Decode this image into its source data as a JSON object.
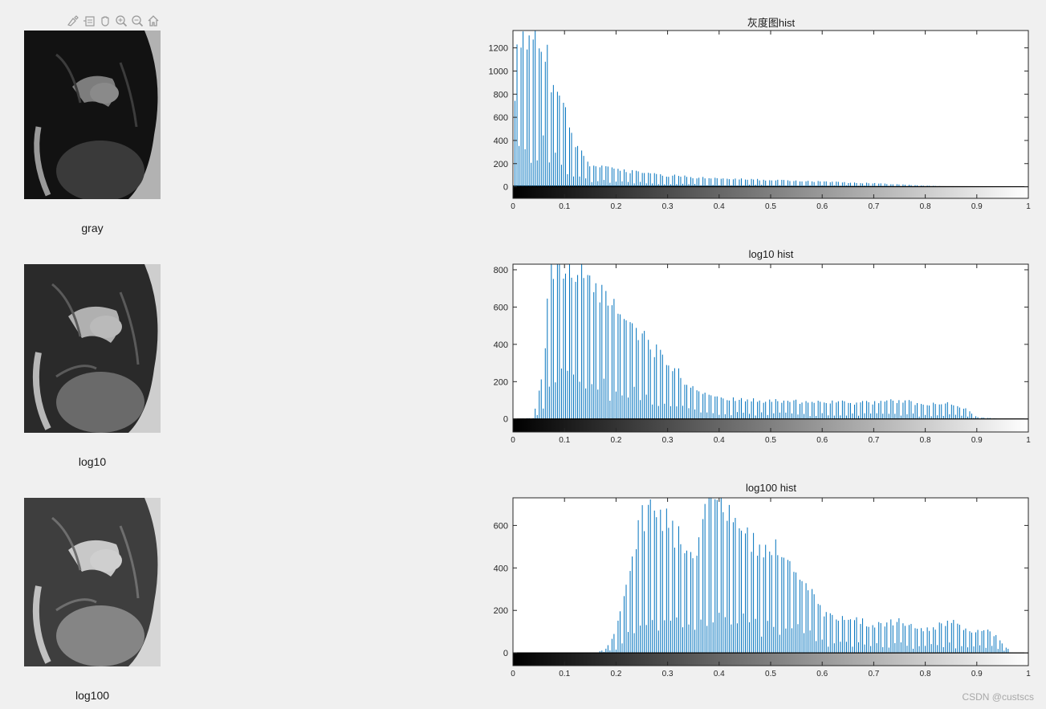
{
  "toolbar": {
    "icons": [
      "brush-icon",
      "datatip-icon",
      "pan-hand-icon",
      "zoom-in-icon",
      "zoom-out-icon",
      "home-icon"
    ]
  },
  "images": [
    {
      "label": "gray"
    },
    {
      "label": "log10"
    },
    {
      "label": "log100"
    }
  ],
  "watermark": "CSDN @custscs",
  "chart_data": [
    {
      "type": "bar",
      "title": "灰度图hist",
      "xlim": [
        0,
        1
      ],
      "ylim": [
        -100,
        1350
      ],
      "xticks": [
        "0",
        "0.1",
        "0.2",
        "0.3",
        "0.4",
        "0.5",
        "0.6",
        "0.7",
        "0.8",
        "0.9",
        "1"
      ],
      "yticks": [
        "0",
        "200",
        "400",
        "600",
        "800",
        "1000",
        "1200"
      ],
      "colorbar": "grayscale 0 to 1",
      "series_color": "#0072bd",
      "profile": [
        [
          0,
          500
        ],
        [
          0.01,
          1350
        ],
        [
          0.02,
          1350
        ],
        [
          0.04,
          1350
        ],
        [
          0.06,
          1350
        ],
        [
          0.07,
          1000
        ],
        [
          0.08,
          900
        ],
        [
          0.1,
          700
        ],
        [
          0.12,
          400
        ],
        [
          0.15,
          200
        ],
        [
          0.2,
          150
        ],
        [
          0.3,
          100
        ],
        [
          0.4,
          70
        ],
        [
          0.5,
          60
        ],
        [
          0.6,
          45
        ],
        [
          0.7,
          30
        ],
        [
          0.8,
          10
        ],
        [
          0.85,
          0
        ]
      ]
    },
    {
      "type": "bar",
      "title": "log10 hist",
      "xlim": [
        0,
        1
      ],
      "ylim": [
        -70,
        830
      ],
      "xticks": [
        "0",
        "0.1",
        "0.2",
        "0.3",
        "0.4",
        "0.5",
        "0.6",
        "0.7",
        "0.8",
        "0.9",
        "1"
      ],
      "yticks": [
        "0",
        "200",
        "400",
        "600",
        "800"
      ],
      "colorbar": "grayscale 0 to 1",
      "series_color": "#0072bd",
      "profile": [
        [
          0,
          0
        ],
        [
          0.04,
          5
        ],
        [
          0.05,
          150
        ],
        [
          0.06,
          300
        ],
        [
          0.07,
          780
        ],
        [
          0.08,
          830
        ],
        [
          0.1,
          830
        ],
        [
          0.15,
          780
        ],
        [
          0.2,
          600
        ],
        [
          0.25,
          450
        ],
        [
          0.3,
          320
        ],
        [
          0.35,
          160
        ],
        [
          0.4,
          110
        ],
        [
          0.5,
          100
        ],
        [
          0.6,
          90
        ],
        [
          0.7,
          90
        ],
        [
          0.75,
          100
        ],
        [
          0.8,
          80
        ],
        [
          0.85,
          90
        ],
        [
          0.88,
          50
        ],
        [
          0.9,
          10
        ],
        [
          0.95,
          0
        ]
      ]
    },
    {
      "type": "bar",
      "title": "log100 hist",
      "xlim": [
        0,
        1
      ],
      "ylim": [
        -60,
        730
      ],
      "xticks": [
        "0",
        "0.1",
        "0.2",
        "0.3",
        "0.4",
        "0.5",
        "0.6",
        "0.7",
        "0.8",
        "0.9",
        "1"
      ],
      "yticks": [
        "0",
        "200",
        "400",
        "600"
      ],
      "colorbar": "grayscale 0 to 1",
      "series_color": "#0072bd",
      "profile": [
        [
          0,
          0
        ],
        [
          0.16,
          0
        ],
        [
          0.18,
          20
        ],
        [
          0.2,
          100
        ],
        [
          0.22,
          300
        ],
        [
          0.25,
          650
        ],
        [
          0.27,
          730
        ],
        [
          0.3,
          620
        ],
        [
          0.35,
          480
        ],
        [
          0.38,
          720
        ],
        [
          0.4,
          730
        ],
        [
          0.45,
          560
        ],
        [
          0.5,
          480
        ],
        [
          0.52,
          510
        ],
        [
          0.55,
          420
        ],
        [
          0.6,
          200
        ],
        [
          0.65,
          160
        ],
        [
          0.7,
          140
        ],
        [
          0.75,
          150
        ],
        [
          0.8,
          110
        ],
        [
          0.85,
          150
        ],
        [
          0.9,
          100
        ],
        [
          0.92,
          130
        ],
        [
          0.95,
          40
        ],
        [
          0.97,
          0
        ]
      ]
    }
  ]
}
